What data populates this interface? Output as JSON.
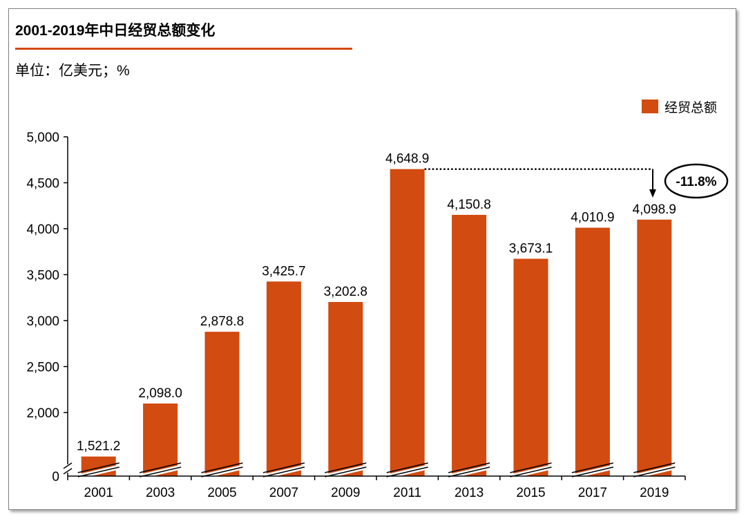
{
  "title": "2001-2019年中日经贸总额变化",
  "unit_label": "单位：亿美元；%",
  "chart_data": {
    "type": "bar",
    "categories": [
      "2001",
      "2003",
      "2005",
      "2007",
      "2009",
      "2011",
      "2013",
      "2015",
      "2017",
      "2019"
    ],
    "series": [
      {
        "name": "经贸总额",
        "values": [
          1521.2,
          2098.0,
          2878.8,
          3425.7,
          3202.8,
          4648.9,
          4150.8,
          3673.1,
          4010.9,
          4098.9
        ]
      }
    ],
    "data_labels": [
      "1,521.2",
      "2,098.0",
      "2,878.8",
      "3,425.7",
      "3,202.8",
      "4,648.9",
      "4,150.8",
      "3,673.1",
      "4,010.9",
      "4,098.9"
    ],
    "y_ticks": [
      0,
      2000,
      2500,
      3000,
      3500,
      4000,
      4500,
      5000
    ],
    "y_tick_labels": [
      "0",
      "2,000",
      "2,500",
      "3,000",
      "3,500",
      "4,000",
      "4,500",
      "5,000"
    ],
    "y_axis_break": true,
    "ylim": [
      1500,
      5000
    ],
    "grid": false,
    "legend_position": "top-right",
    "bar_color": "#d24b10",
    "annotation": {
      "text": "-11.8%",
      "from_category": "2011",
      "to_category": "2019"
    }
  }
}
